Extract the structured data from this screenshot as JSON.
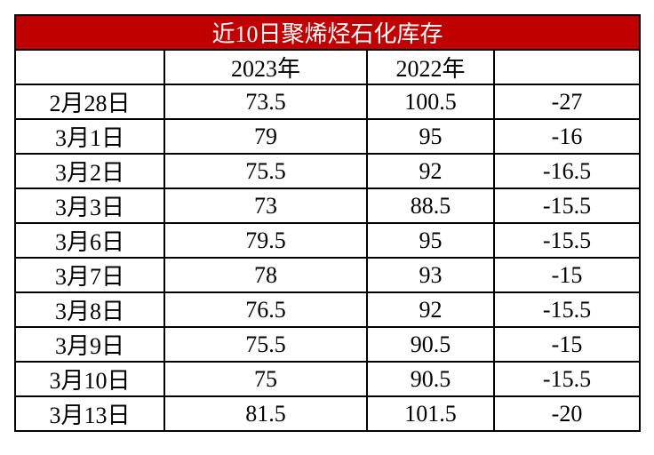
{
  "table": {
    "title": "近10日聚烯烃石化库存",
    "header": [
      "2023年",
      "2022年"
    ],
    "rows": [
      [
        "2月28日",
        73.5,
        100.5,
        -27
      ],
      [
        "3月1日",
        79,
        95,
        -16
      ],
      [
        "3月2日",
        75.5,
        92,
        -16.5
      ],
      [
        "3月3日",
        73,
        88.5,
        -15.5
      ],
      [
        "3月6日",
        79.5,
        95,
        -15.5
      ],
      [
        "3月7日",
        78,
        93,
        -15
      ],
      [
        "3月8日",
        76.5,
        92,
        -15.5
      ],
      [
        "3月9日",
        75.5,
        90.5,
        -15
      ],
      [
        "3月10日",
        75,
        90.5,
        -15.5
      ],
      [
        "3月13日",
        81.5,
        101.5,
        -20
      ]
    ]
  }
}
